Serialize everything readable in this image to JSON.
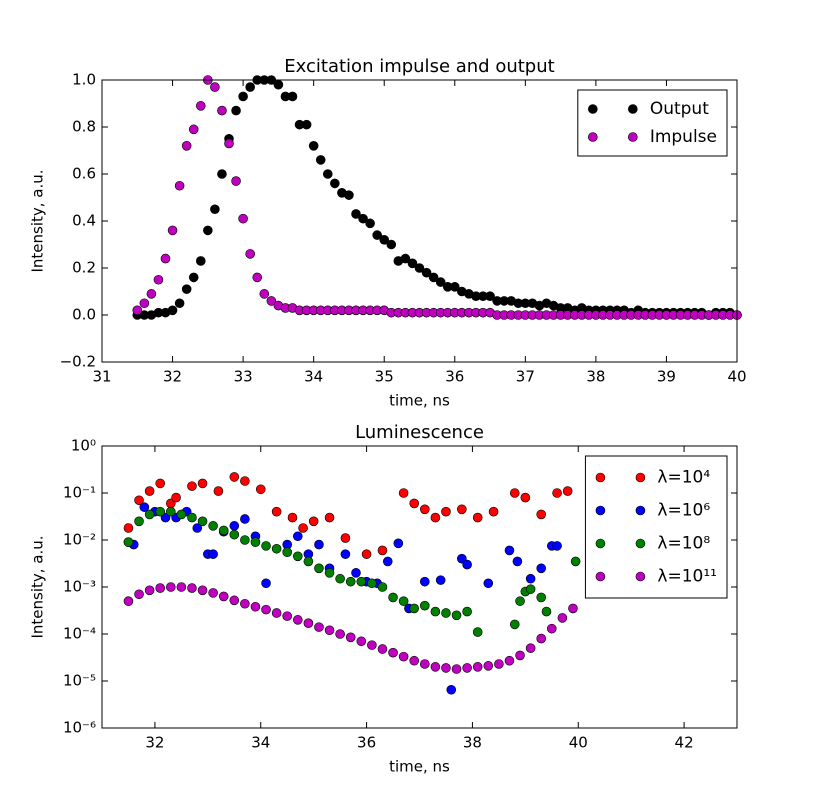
{
  "chart_data": [
    {
      "type": "scatter",
      "title": "Excitation impulse and output",
      "x_label": "time, ns",
      "y_label": "Intensity, a.u.",
      "x": [
        31.5,
        31.6,
        31.7,
        31.8,
        31.9,
        32.0,
        32.1,
        32.2,
        32.3,
        32.4,
        32.5,
        32.6,
        32.7,
        32.8,
        32.9,
        33.0,
        33.1,
        33.2,
        33.3,
        33.4,
        33.5,
        33.6,
        33.7,
        33.8,
        33.9,
        34.0,
        34.1,
        34.2,
        34.3,
        34.4,
        34.5,
        34.6,
        34.7,
        34.8,
        34.9,
        35.0,
        35.1,
        35.2,
        35.3,
        35.4,
        35.5,
        35.6,
        35.7,
        35.8,
        35.9,
        36.0,
        36.1,
        36.2,
        36.3,
        36.4,
        36.5,
        36.6,
        36.7,
        36.8,
        36.9,
        37.0,
        37.1,
        37.2,
        37.3,
        37.4,
        37.5,
        37.6,
        37.7,
        37.8,
        37.9,
        38.0,
        38.1,
        38.2,
        38.3,
        38.4,
        38.5,
        38.6,
        38.7,
        38.8,
        38.9,
        39.0,
        39.1,
        39.2,
        39.3,
        39.4,
        39.5,
        39.6,
        39.7,
        39.8,
        39.9,
        40.0
      ],
      "series": [
        {
          "name": "Output",
          "color": "#000000",
          "values": [
            0,
            0,
            0,
            0.01,
            0.01,
            0.02,
            0.05,
            0.11,
            0.16,
            0.23,
            0.36,
            0.45,
            0.6,
            0.75,
            0.87,
            0.93,
            0.97,
            1,
            1,
            1,
            0.98,
            0.93,
            0.93,
            0.81,
            0.81,
            0.72,
            0.66,
            0.6,
            0.56,
            0.52,
            0.51,
            0.43,
            0.41,
            0.39,
            0.34,
            0.32,
            0.3,
            0.23,
            0.24,
            0.22,
            0.2,
            0.18,
            0.16,
            0.14,
            0.12,
            0.12,
            0.1,
            0.09,
            0.08,
            0.08,
            0.08,
            0.06,
            0.06,
            0.06,
            0.05,
            0.05,
            0.05,
            0.04,
            0.05,
            0.04,
            0.03,
            0.03,
            0.02,
            0.03,
            0.02,
            0.02,
            0.02,
            0.02,
            0.02,
            0.02,
            0.01,
            0.02,
            0.01,
            0.01,
            0.01,
            0.01,
            0.01,
            0.01,
            0.01,
            0.01,
            0.01,
            0,
            0.01,
            0.01,
            0.01,
            0
          ]
        },
        {
          "name": "Impulse",
          "color": "#bf00bf",
          "values": [
            0.02,
            0.05,
            0.09,
            0.15,
            0.24,
            0.36,
            0.55,
            0.72,
            0.79,
            0.89,
            1,
            0.97,
            0.87,
            0.73,
            0.57,
            0.41,
            0.26,
            0.16,
            0.09,
            0.06,
            0.04,
            0.03,
            0.03,
            0.02,
            0.02,
            0.02,
            0.02,
            0.02,
            0.02,
            0.02,
            0.02,
            0.02,
            0.02,
            0.02,
            0.02,
            0.02,
            0.01,
            0.01,
            0.01,
            0.01,
            0.01,
            0.01,
            0.01,
            0.01,
            0.01,
            0.01,
            0.01,
            0.01,
            0.01,
            0.01,
            0.01,
            0,
            0,
            0,
            0,
            0,
            0,
            0,
            0,
            0,
            0,
            0,
            0,
            0,
            0,
            0,
            0,
            0,
            0,
            0,
            0,
            0,
            0,
            0,
            0,
            0,
            0,
            0,
            0,
            0,
            0,
            0,
            0,
            0,
            0,
            0
          ]
        }
      ],
      "xlim": [
        31,
        40
      ],
      "xticks": [
        31,
        32,
        33,
        34,
        35,
        36,
        37,
        38,
        39,
        40
      ],
      "ylim": [
        -0.2,
        1.0
      ],
      "yticks": [
        {
          "value": -0.2,
          "label": "−0.2"
        },
        {
          "value": 0,
          "label": "0.0"
        },
        0.2,
        0.4,
        0.6,
        0.8,
        {
          "value": 1,
          "label": "1.0"
        }
      ],
      "legend": "upper right"
    },
    {
      "type": "scatter",
      "title": "Luminescence",
      "x_label": "time, ns",
      "y_label": "Intensity, a.u.",
      "log_y": true,
      "series": [
        {
          "name": "λ=10⁴",
          "color": "#ff0000",
          "x": [
            31.5,
            31.7,
            31.9,
            32.1,
            32.3,
            32.4,
            32.7,
            32.9,
            33.2,
            33.5,
            33.7,
            34.0,
            34.3,
            34.6,
            34.8,
            35.0,
            35.3,
            35.6,
            36.0,
            36.3,
            36.7,
            36.9,
            37.1,
            37.3,
            37.5,
            37.8,
            38.1,
            38.4,
            38.8,
            39.0,
            39.3,
            39.6,
            39.8
          ],
          "values": [
            0.018,
            0.07,
            0.11,
            0.16,
            0.06,
            0.08,
            0.14,
            0.16,
            0.11,
            0.22,
            0.18,
            0.12,
            0.04,
            0.03,
            0.018,
            0.025,
            0.03,
            0.011,
            0.005,
            0.006,
            0.1,
            0.06,
            0.045,
            0.03,
            0.04,
            0.045,
            0.03,
            0.04,
            0.1,
            0.08,
            0.035,
            0.1,
            0.11
          ]
        },
        {
          "name": "λ=10⁶",
          "color": "#0000ff",
          "x": [
            31.5,
            31.6,
            31.8,
            32.0,
            32.2,
            32.4,
            32.6,
            32.8,
            33.0,
            33.1,
            33.3,
            33.5,
            33.7,
            33.9,
            34.1,
            34.5,
            34.7,
            34.9,
            35.1,
            35.3,
            35.6,
            35.8,
            36.0,
            36.2,
            36.4,
            36.6,
            36.8,
            37.1,
            37.4,
            37.6,
            37.8,
            37.9,
            38.3,
            38.7,
            38.85,
            39.1,
            39.3,
            39.5,
            39.6
          ],
          "values": [
            0.009,
            0.008,
            0.05,
            0.04,
            0.03,
            0.03,
            0.04,
            0.018,
            0.005,
            0.005,
            0.015,
            0.02,
            0.028,
            0.012,
            0.0012,
            0.008,
            0.012,
            0.005,
            0.008,
            0.0025,
            0.005,
            0.002,
            0.0013,
            0.0012,
            0.0035,
            0.0085,
            0.00035,
            0.0013,
            0.0014,
            6.5e-06,
            0.004,
            0.003,
            0.0012,
            0.006,
            0.0035,
            0.0015,
            0.0025,
            0.0075,
            0.0075
          ]
        },
        {
          "name": "λ=10⁸",
          "color": "#008000",
          "x": [
            31.5,
            31.7,
            31.9,
            32.1,
            32.3,
            32.5,
            32.7,
            32.9,
            33.1,
            33.3,
            33.5,
            33.7,
            33.9,
            34.1,
            34.3,
            34.5,
            34.7,
            34.9,
            35.1,
            35.3,
            35.5,
            35.7,
            35.9,
            36.1,
            36.3,
            36.5,
            36.7,
            36.9,
            37.1,
            37.3,
            37.5,
            37.7,
            37.9,
            38.1,
            38.8,
            38.9,
            39.0,
            39.1,
            39.3,
            39.4,
            39.95
          ],
          "values": [
            0.009,
            0.025,
            0.035,
            0.04,
            0.04,
            0.035,
            0.03,
            0.025,
            0.02,
            0.016,
            0.013,
            0.01,
            0.009,
            0.0075,
            0.0065,
            0.0055,
            0.0045,
            0.0035,
            0.0025,
            0.002,
            0.0015,
            0.0013,
            0.0013,
            0.0012,
            0.001,
            0.0006,
            0.0005,
            0.00035,
            0.0004,
            0.0003,
            0.00028,
            0.00025,
            0.0003,
            0.00011,
            0.00016,
            0.0005,
            0.0008,
            0.0009,
            0.0006,
            0.0003,
            0.0035
          ]
        },
        {
          "name": "λ=10¹¹",
          "color": "#bf00bf",
          "x": [
            31.5,
            31.7,
            31.9,
            32.1,
            32.3,
            32.5,
            32.7,
            32.9,
            33.1,
            33.3,
            33.5,
            33.7,
            33.9,
            34.1,
            34.3,
            34.5,
            34.7,
            34.9,
            35.1,
            35.3,
            35.5,
            35.7,
            35.9,
            36.1,
            36.3,
            36.5,
            36.7,
            36.9,
            37.1,
            37.3,
            37.5,
            37.7,
            37.9,
            38.1,
            38.3,
            38.5,
            38.7,
            38.9,
            39.1,
            39.3,
            39.5,
            39.7,
            39.9
          ],
          "values": [
            0.0005,
            0.0007,
            0.00085,
            0.00095,
            0.001,
            0.001,
            0.00095,
            0.00085,
            0.00075,
            0.00063,
            0.00052,
            0.00044,
            0.00038,
            0.00033,
            0.00028,
            0.00024,
            0.0002,
            0.00017,
            0.00014,
            0.00012,
            0.0001,
            8.5e-05,
            7e-05,
            5.8e-05,
            4.8e-05,
            4e-05,
            3.3e-05,
            2.7e-05,
            2.3e-05,
            2e-05,
            1.9e-05,
            1.8e-05,
            1.9e-05,
            2e-05,
            2.1e-05,
            2.3e-05,
            2.7e-05,
            3.5e-05,
            5e-05,
            8e-05,
            0.00013,
            0.00022,
            0.00035
          ]
        }
      ],
      "xlim": [
        31,
        43
      ],
      "xticks": [
        32,
        34,
        36,
        38,
        40,
        42
      ],
      "ylim": [
        1e-06,
        1
      ],
      "yticks": [
        {
          "value": 1e-06,
          "label": "10⁻⁶"
        },
        {
          "value": 1e-05,
          "label": "10⁻⁵"
        },
        {
          "value": 0.0001,
          "label": "10⁻⁴"
        },
        {
          "value": 0.001,
          "label": "10⁻³"
        },
        {
          "value": 0.01,
          "label": "10⁻²"
        },
        {
          "value": 0.1,
          "label": "10⁻¹"
        },
        {
          "value": 1,
          "label": "10⁰"
        }
      ],
      "legend": "upper right"
    }
  ]
}
